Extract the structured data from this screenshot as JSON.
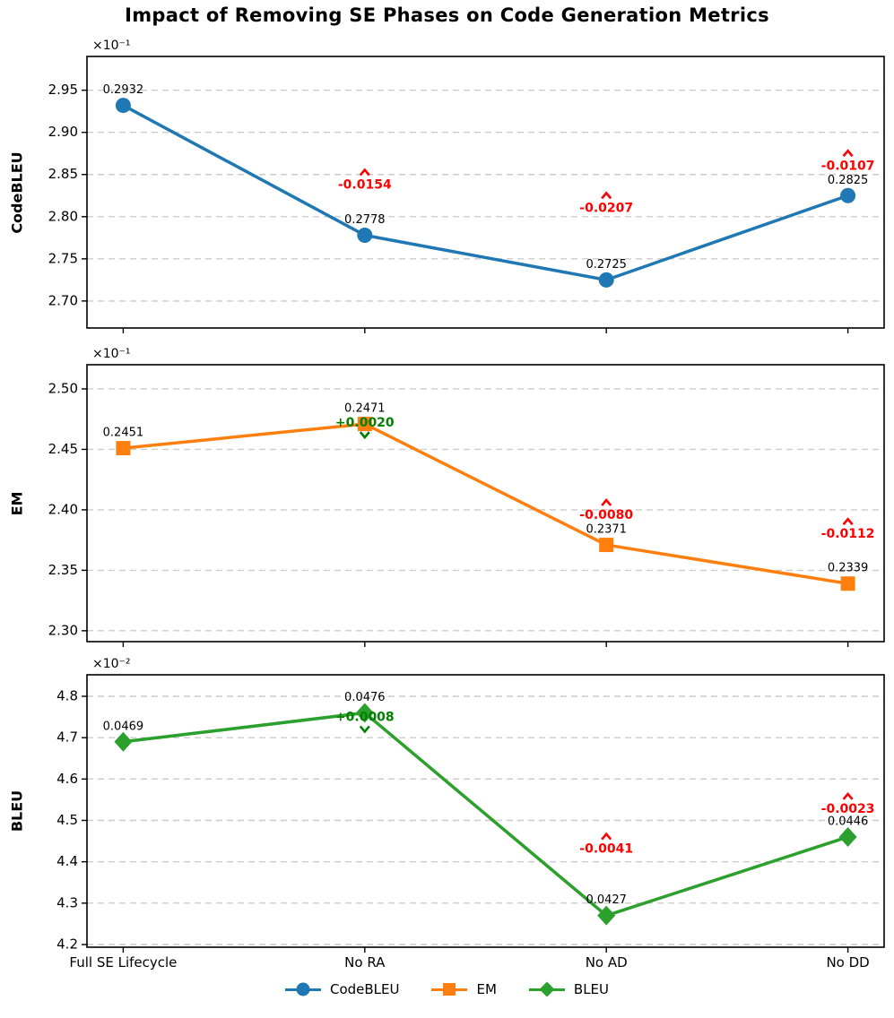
{
  "title": "Impact of Removing SE Phases on Code Generation Metrics",
  "categories": [
    "Full SE Lifecycle",
    "No RA",
    "No AD",
    "No DD"
  ],
  "colors": {
    "codebleu": "#1f77b4",
    "em": "#ff7f0e",
    "bleu": "#2ca02c",
    "decrease": "#ff0000",
    "increase": "#008000",
    "grid": "#cccccc",
    "frame": "#000000"
  },
  "legend": [
    {
      "label": "CodeBLEU",
      "marker": "circle",
      "color": "#1f77b4"
    },
    {
      "label": "EM",
      "marker": "square",
      "color": "#ff7f0e"
    },
    {
      "label": "BLEU",
      "marker": "diamond",
      "color": "#2ca02c"
    }
  ],
  "chart_data": [
    {
      "type": "line",
      "name": "CodeBLEU",
      "ylabel": "CodeBLEU",
      "marker": "circle",
      "color": "#1f77b4",
      "offset_text": "×10⁻¹",
      "scale": 10,
      "grid": true,
      "categories": [
        "Full SE Lifecycle",
        "No RA",
        "No AD",
        "No DD"
      ],
      "values": [
        0.2932,
        0.2778,
        0.2725,
        0.2825
      ],
      "point_labels": [
        "0.2932",
        "0.2778",
        "0.2725",
        "0.2825"
      ],
      "yticks": [
        2.7,
        2.75,
        2.8,
        2.85,
        2.9,
        2.95
      ],
      "ytick_labels": [
        "2.70",
        "2.75",
        "2.80",
        "2.85",
        "2.90",
        "2.95"
      ],
      "ylim": [
        2.668,
        2.99
      ],
      "annotations": [
        {
          "x_index": 1,
          "text": "-0.0154",
          "color": "#ff0000",
          "caret": "up",
          "dy": -56
        },
        {
          "x_index": 2,
          "text": "-0.0207",
          "color": "#ff0000",
          "caret": "up",
          "dy": -80
        },
        {
          "x_index": 3,
          "text": "-0.0107",
          "color": "#ff0000",
          "caret": "up",
          "dy": -33
        }
      ]
    },
    {
      "type": "line",
      "name": "EM",
      "ylabel": "EM",
      "marker": "square",
      "color": "#ff7f0e",
      "offset_text": "×10⁻¹",
      "scale": 10,
      "grid": true,
      "categories": [
        "Full SE Lifecycle",
        "No RA",
        "No AD",
        "No DD"
      ],
      "values": [
        0.2451,
        0.2471,
        0.2371,
        0.2339
      ],
      "point_labels": [
        "0.2451",
        "0.2471",
        "0.2371",
        "0.2339"
      ],
      "yticks": [
        2.3,
        2.35,
        2.4,
        2.45,
        2.5
      ],
      "ytick_labels": [
        "2.30",
        "2.35",
        "2.40",
        "2.45",
        "2.50"
      ],
      "ylim": [
        2.291,
        2.52
      ],
      "annotations": [
        {
          "x_index": 1,
          "text": "+0.0020",
          "color": "#008000",
          "caret": "down",
          "dy": -1
        },
        {
          "x_index": 2,
          "text": "-0.0080",
          "color": "#ff0000",
          "caret": "up",
          "dy": -33
        },
        {
          "x_index": 3,
          "text": "-0.0112",
          "color": "#ff0000",
          "caret": "up",
          "dy": -55
        }
      ]
    },
    {
      "type": "line",
      "name": "BLEU",
      "ylabel": "BLEU",
      "marker": "diamond",
      "color": "#2ca02c",
      "offset_text": "×10⁻²",
      "scale": 100,
      "grid": true,
      "categories": [
        "Full SE Lifecycle",
        "No RA",
        "No AD",
        "No DD"
      ],
      "values": [
        0.0469,
        0.0476,
        0.0427,
        0.0446
      ],
      "point_labels": [
        "0.0469",
        "0.0476",
        "0.0427",
        "0.0446"
      ],
      "yticks": [
        4.2,
        4.3,
        4.4,
        4.5,
        4.6,
        4.7,
        4.8
      ],
      "ytick_labels": [
        "4.2",
        "4.3",
        "4.4",
        "4.5",
        "4.6",
        "4.7",
        "4.8"
      ],
      "ylim": [
        4.1935,
        4.852
      ],
      "annotations": [
        {
          "x_index": 1,
          "text": "+0.0008",
          "color": "#008000",
          "caret": "down",
          "dy": 5
        },
        {
          "x_index": 2,
          "text": "-0.0041",
          "color": "#ff0000",
          "caret": "up",
          "dy": -74
        },
        {
          "x_index": 3,
          "text": "-0.0023",
          "color": "#ff0000",
          "caret": "up",
          "dy": -31
        }
      ]
    }
  ]
}
